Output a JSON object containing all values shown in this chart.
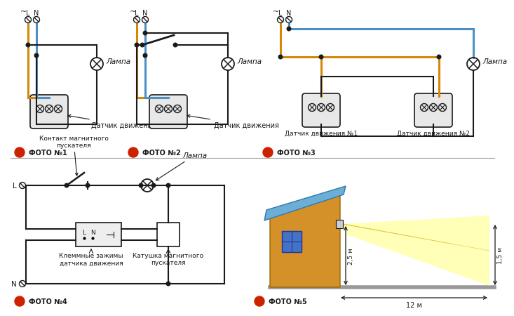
{
  "bg_color": "#ffffff",
  "line_color": "#1a1a1a",
  "orange_wire": "#D4870A",
  "blue_wire": "#4A90C4",
  "foto_red": "#CC2200",
  "foto_labels": [
    "ФОТО №1",
    "ФОТО №2",
    "ФОТО №3",
    "ФОТО №4",
    "ФОТО №5"
  ],
  "lamp_label": "Лампа",
  "sensor_label": "Датчик движения",
  "sensor1_label": "Датчик движения №1",
  "sensor2_label": "Датчик движения №2",
  "contact_label": "Контакт магнитного\nпускателя",
  "clamp_label": "Клеммные зажимы\nдатчика движения",
  "coil_label": "Катушка магнитного\nпускателя",
  "house_color": "#D4912A",
  "roof_color": "#6BAED6",
  "window_color": "#4472C4",
  "dim_25": "2,5 м",
  "dim_15": "1,5 м",
  "dim_12": "12 м",
  "divider_color": "#AAAAAA"
}
